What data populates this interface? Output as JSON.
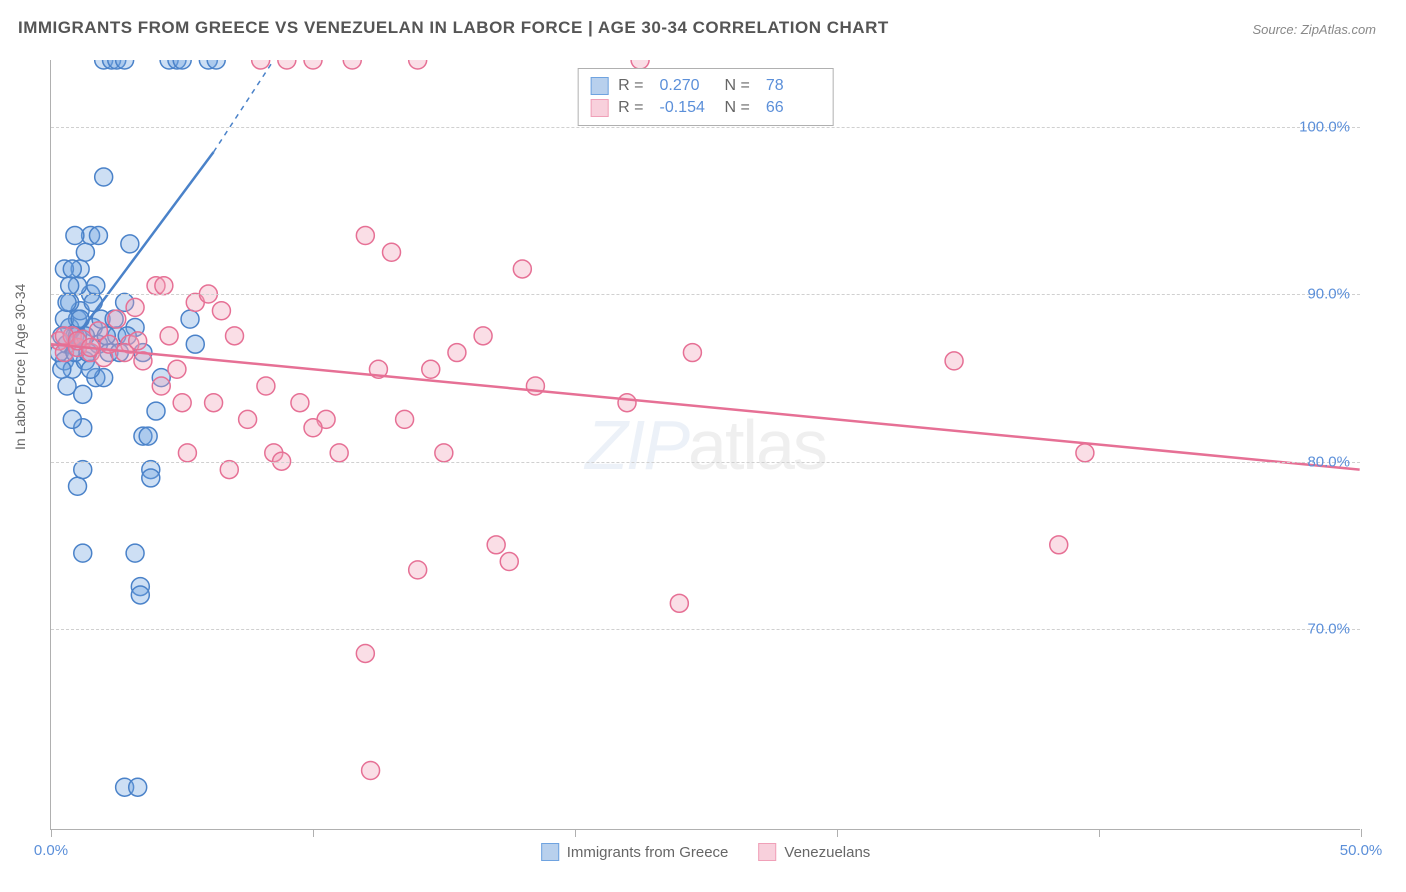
{
  "title": "IMMIGRANTS FROM GREECE VS VENEZUELAN IN LABOR FORCE | AGE 30-34 CORRELATION CHART",
  "source": "Source: ZipAtlas.com",
  "watermark_part1": "ZIP",
  "watermark_part2": "atlas",
  "ylabel": "In Labor Force | Age 30-34",
  "chart": {
    "type": "scatter",
    "background_color": "#ffffff",
    "grid_color": "#d0d0d0",
    "axis_color": "#b0b0b0",
    "tick_label_color": "#5b8fd9",
    "xlim": [
      0,
      50
    ],
    "ylim": [
      58,
      104
    ],
    "x_ticks": [
      0,
      10,
      20,
      30,
      40,
      50
    ],
    "x_tick_labels": [
      "0.0%",
      "",
      "",
      "",
      "",
      "50.0%"
    ],
    "y_ticks": [
      70,
      80,
      90,
      100
    ],
    "y_tick_labels": [
      "70.0%",
      "80.0%",
      "90.0%",
      "100.0%"
    ],
    "marker_radius": 9,
    "marker_fill_opacity": 0.35,
    "marker_stroke_width": 1.5,
    "series": [
      {
        "name": "Immigrants from Greece",
        "color": "#6fa3e0",
        "stroke_color": "#4a82c9",
        "R": "0.270",
        "N": "78",
        "trend": {
          "x1": 0.5,
          "y1": 86.5,
          "x2": 8.5,
          "y2": 104,
          "solid_end_x": 6.2,
          "solid_end_y": 98.5
        },
        "points": [
          [
            0.5,
            86
          ],
          [
            0.6,
            87
          ],
          [
            0.7,
            88
          ],
          [
            0.8,
            85.5
          ],
          [
            0.9,
            87.5
          ],
          [
            1.0,
            86.8
          ],
          [
            1.0,
            88.5
          ],
          [
            1.1,
            89
          ],
          [
            1.2,
            84
          ],
          [
            1.2,
            82
          ],
          [
            1.3,
            86
          ],
          [
            1.5,
            90
          ],
          [
            1.5,
            93.5
          ],
          [
            1.6,
            88
          ],
          [
            1.7,
            85
          ],
          [
            1.8,
            87
          ],
          [
            2.0,
            97
          ],
          [
            2.0,
            104
          ],
          [
            2.3,
            104
          ],
          [
            2.5,
            104
          ],
          [
            2.8,
            104
          ],
          [
            3.0,
            93
          ],
          [
            3.2,
            88
          ],
          [
            3.5,
            86.5
          ],
          [
            3.5,
            81.5
          ],
          [
            3.7,
            81.5
          ],
          [
            3.8,
            79.5
          ],
          [
            3.8,
            79.0
          ],
          [
            4.0,
            83
          ],
          [
            4.2,
            85
          ],
          [
            4.5,
            104
          ],
          [
            4.8,
            104
          ],
          [
            5.0,
            104
          ],
          [
            5.3,
            88.5
          ],
          [
            5.5,
            87
          ],
          [
            6.0,
            104
          ],
          [
            6.3,
            104
          ],
          [
            1.2,
            74.5
          ],
          [
            1.0,
            78.5
          ],
          [
            1.2,
            79.5
          ],
          [
            0.8,
            82.5
          ],
          [
            2.8,
            60.5
          ],
          [
            3.3,
            60.5
          ],
          [
            2.0,
            85
          ],
          [
            1.5,
            85.5
          ],
          [
            1.0,
            90.5
          ],
          [
            0.6,
            84.5
          ],
          [
            0.7,
            89.5
          ],
          [
            1.1,
            91.5
          ],
          [
            1.3,
            92.5
          ],
          [
            0.9,
            93.5
          ],
          [
            2.5,
            87.5
          ],
          [
            2.8,
            89.5
          ],
          [
            2.2,
            86.5
          ],
          [
            1.8,
            93.5
          ],
          [
            0.5,
            91.5
          ],
          [
            3.2,
            74.5
          ],
          [
            3.4,
            72.5
          ],
          [
            3.4,
            72.0
          ],
          [
            0.4,
            87.5
          ],
          [
            0.5,
            88.5
          ],
          [
            0.6,
            89.5
          ],
          [
            0.3,
            86.5
          ],
          [
            0.4,
            85.5
          ],
          [
            0.7,
            90.5
          ],
          [
            0.8,
            91.5
          ],
          [
            0.9,
            86.5
          ],
          [
            1.0,
            87.5
          ],
          [
            1.1,
            88.5
          ],
          [
            1.3,
            87.5
          ],
          [
            1.4,
            86.5
          ],
          [
            1.6,
            89.5
          ],
          [
            1.7,
            90.5
          ],
          [
            1.9,
            88.5
          ],
          [
            2.1,
            87.5
          ],
          [
            2.4,
            88.5
          ],
          [
            2.6,
            86.5
          ],
          [
            2.9,
            87.5
          ]
        ]
      },
      {
        "name": "Venezuelans",
        "color": "#f0a0b8",
        "stroke_color": "#e67095",
        "R": "-0.154",
        "N": "66",
        "trend": {
          "x1": 0,
          "y1": 87,
          "x2": 50,
          "y2": 79.5
        },
        "points": [
          [
            0.3,
            87.2
          ],
          [
            0.5,
            86.5
          ],
          [
            0.8,
            87.5
          ],
          [
            1.0,
            86.8
          ],
          [
            1.2,
            87.3
          ],
          [
            1.5,
            86.5
          ],
          [
            1.8,
            87.8
          ],
          [
            2.0,
            86.2
          ],
          [
            2.5,
            88.5
          ],
          [
            3.0,
            87.0
          ],
          [
            3.5,
            86.0
          ],
          [
            4.0,
            90.5
          ],
          [
            4.5,
            87.5
          ],
          [
            5.0,
            83.5
          ],
          [
            5.5,
            89.5
          ],
          [
            6.0,
            90.0
          ],
          [
            6.5,
            89.0
          ],
          [
            7.0,
            87.5
          ],
          [
            7.5,
            82.5
          ],
          [
            8.0,
            104
          ],
          [
            8.5,
            80.5
          ],
          [
            9.0,
            104
          ],
          [
            9.5,
            83.5
          ],
          [
            10.0,
            104
          ],
          [
            10.5,
            82.5
          ],
          [
            11.0,
            80.5
          ],
          [
            11.5,
            104
          ],
          [
            12.0,
            93.5
          ],
          [
            12.0,
            68.5
          ],
          [
            12.5,
            85.5
          ],
          [
            13.0,
            92.5
          ],
          [
            13.5,
            82.5
          ],
          [
            14.0,
            104
          ],
          [
            14.5,
            85.5
          ],
          [
            15.0,
            80.5
          ],
          [
            15.5,
            86.5
          ],
          [
            16.5,
            87.5
          ],
          [
            17.5,
            74.0
          ],
          [
            18.0,
            91.5
          ],
          [
            18.5,
            84.5
          ],
          [
            12.2,
            61.5
          ],
          [
            22.5,
            104
          ],
          [
            22.0,
            83.5
          ],
          [
            24.0,
            71.5
          ],
          [
            24.5,
            86.5
          ],
          [
            34.5,
            86.0
          ],
          [
            38.5,
            75.0
          ],
          [
            39.5,
            80.5
          ],
          [
            3.2,
            89.2
          ],
          [
            4.2,
            84.5
          ],
          [
            4.8,
            85.5
          ],
          [
            5.2,
            80.5
          ],
          [
            6.2,
            83.5
          ],
          [
            6.8,
            79.5
          ],
          [
            8.2,
            84.5
          ],
          [
            8.8,
            80.0
          ],
          [
            2.2,
            87.0
          ],
          [
            2.8,
            86.5
          ],
          [
            3.3,
            87.2
          ],
          [
            4.3,
            90.5
          ],
          [
            0.5,
            87.5
          ],
          [
            1.0,
            87.2
          ],
          [
            1.5,
            86.8
          ],
          [
            14.0,
            73.5
          ],
          [
            17.0,
            75.0
          ],
          [
            10.0,
            82.0
          ]
        ]
      }
    ]
  },
  "legend_top": {
    "rows": [
      {
        "swatch_fill": "#b8d0ed",
        "swatch_border": "#6fa3e0",
        "R_label": "R =",
        "R_val": "0.270",
        "N_label": "N =",
        "N_val": "78"
      },
      {
        "swatch_fill": "#f8d0dc",
        "swatch_border": "#f0a0b8",
        "R_label": "R =",
        "R_val": "-0.154",
        "N_label": "N =",
        "N_val": "66"
      }
    ]
  },
  "legend_bottom": {
    "items": [
      {
        "swatch_fill": "#b8d0ed",
        "swatch_border": "#6fa3e0",
        "label": "Immigrants from Greece"
      },
      {
        "swatch_fill": "#f8d0dc",
        "swatch_border": "#f0a0b8",
        "label": "Venezuelans"
      }
    ]
  }
}
